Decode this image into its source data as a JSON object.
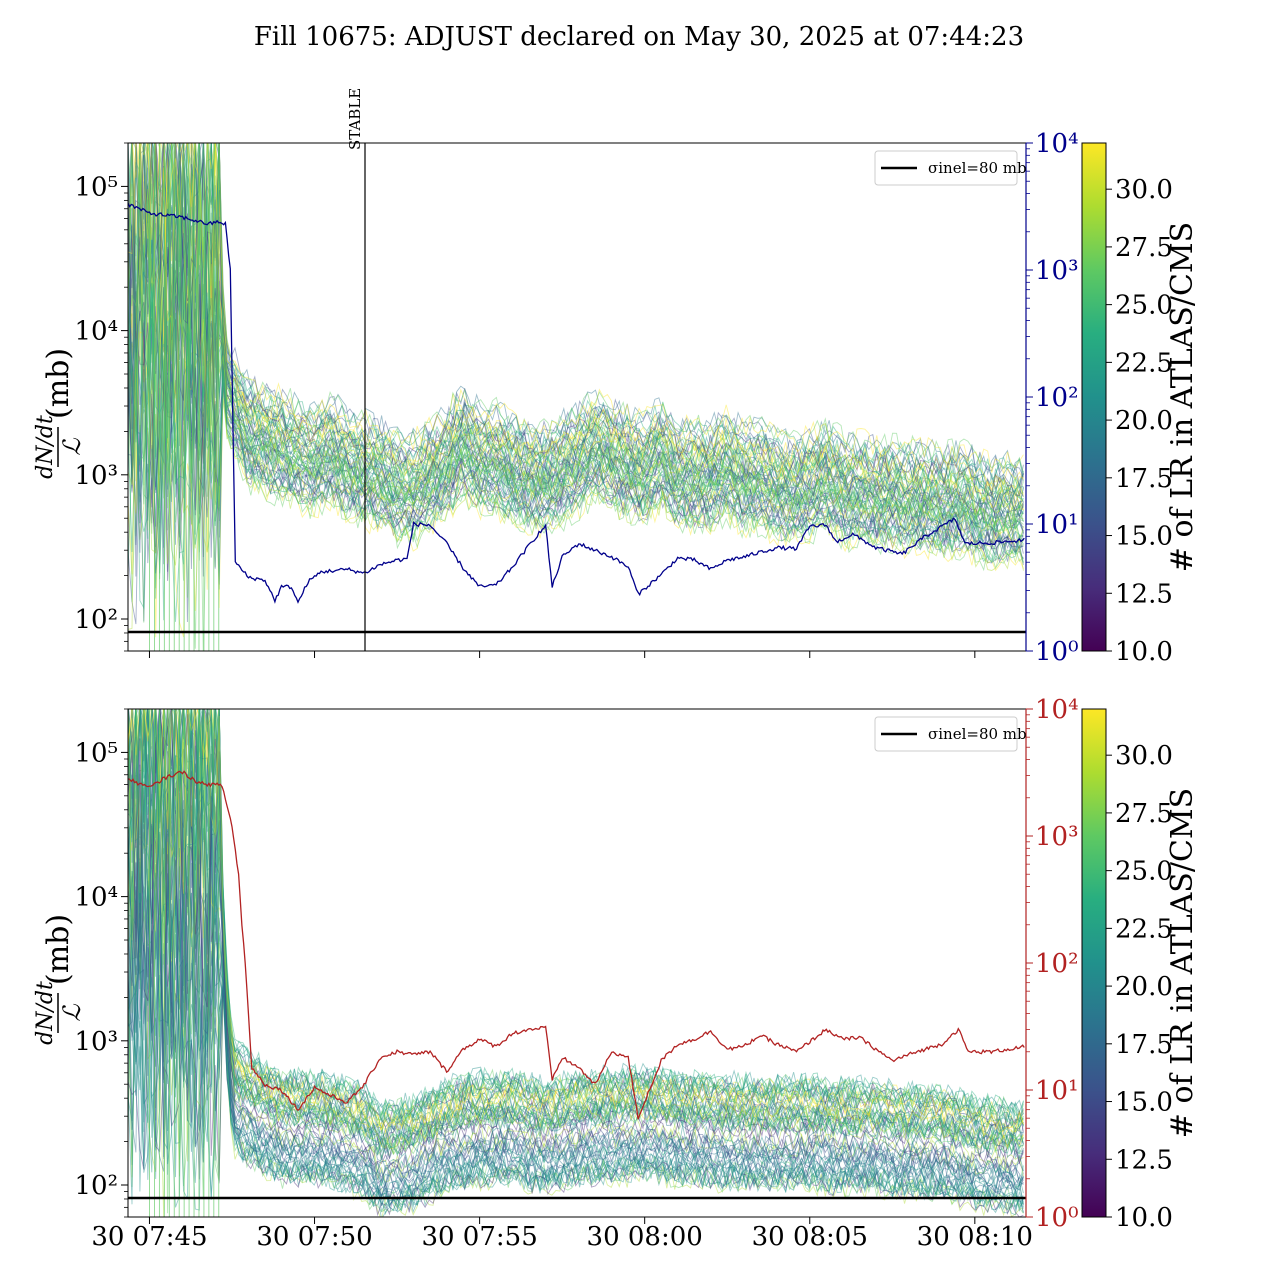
{
  "chart_data": [
    {
      "type": "line",
      "title": "Fill 10675: ADJUST declared on May 30, 2025 at 07:44:23",
      "panel": "top",
      "x_tick_labels": [
        "30 07:45",
        "30 07:50",
        "30 07:55",
        "30 08:00",
        "30 08:05",
        "30 08:10"
      ],
      "x_tick_minutes": [
        0,
        5,
        10,
        15,
        20,
        25
      ],
      "xlim_minutes": [
        -0.65,
        26.55
      ],
      "ylabel_num": "dN/dt",
      "ylabel_den": "ℒ",
      "ylabel_unit": "(mb)",
      "y_scale": "log",
      "ylim": [
        60,
        200000
      ],
      "y_tick_labels": [
        "10²",
        "10³",
        "10⁴",
        "10⁵"
      ],
      "y_tick_values": [
        100,
        1000,
        10000,
        100000
      ],
      "y2_scale": "log",
      "y2lim": [
        1,
        10000
      ],
      "y2_tick_labels": [
        "10⁰",
        "10¹",
        "10²",
        "10³",
        "10⁴"
      ],
      "y2_color": "#00008b",
      "y2_series_points": [
        [
          -0.65,
          3300
        ],
        [
          0,
          2800
        ],
        [
          1,
          2600
        ],
        [
          1.8,
          2300
        ],
        [
          2.1,
          2400
        ],
        [
          2.3,
          2300
        ],
        [
          2.45,
          1000
        ],
        [
          2.6,
          5
        ],
        [
          3,
          3.8
        ],
        [
          3.5,
          3.6
        ],
        [
          3.8,
          2.5
        ],
        [
          4,
          3.2
        ],
        [
          4.3,
          3.2
        ],
        [
          4.5,
          2.4
        ],
        [
          4.8,
          3.5
        ],
        [
          5.2,
          4.2
        ],
        [
          6,
          4.4
        ],
        [
          6.5,
          4.1
        ],
        [
          7,
          4.8
        ],
        [
          7.5,
          5.2
        ],
        [
          7.8,
          5.3
        ],
        [
          8,
          10
        ],
        [
          8.5,
          9.8
        ],
        [
          9,
          7
        ],
        [
          9.5,
          4.5
        ],
        [
          10,
          3.2
        ],
        [
          10.5,
          3.3
        ],
        [
          11,
          4.6
        ],
        [
          11.5,
          6.8
        ],
        [
          11.8,
          8.5
        ],
        [
          12,
          9.6
        ],
        [
          12.2,
          3.2
        ],
        [
          12.5,
          5.5
        ],
        [
          13,
          7
        ],
        [
          13.5,
          6.2
        ],
        [
          14,
          5.5
        ],
        [
          14.5,
          4.6
        ],
        [
          14.8,
          2.8
        ],
        [
          15.5,
          4
        ],
        [
          16,
          5.4
        ],
        [
          16.5,
          5.2
        ],
        [
          17,
          4.4
        ],
        [
          17.5,
          5.2
        ],
        [
          18,
          5.5
        ],
        [
          18.5,
          6
        ],
        [
          19,
          6.5
        ],
        [
          19.6,
          6.4
        ],
        [
          20,
          9.6
        ],
        [
          20.5,
          9.8
        ],
        [
          20.8,
          7.2
        ],
        [
          21.3,
          8.3
        ],
        [
          22,
          6.5
        ],
        [
          22.8,
          5.8
        ],
        [
          23.5,
          8
        ],
        [
          24.4,
          11
        ],
        [
          24.7,
          7
        ],
        [
          25.5,
          7.1
        ],
        [
          26.55,
          7.5
        ]
      ],
      "legend": "σinel=80 mb",
      "legend_placement": "top-right",
      "hline_value": 80,
      "vline_label": "STABLE",
      "vline_minute": 6.5,
      "colorbar_label": "# of LR in ATLAS/CMS",
      "colorbar_range": [
        10,
        32
      ],
      "colorbar_tick_labels": [
        "10.0",
        "12.5",
        "15.0",
        "17.5",
        "20.0",
        "22.5",
        "25.0",
        "27.5",
        "30.0"
      ],
      "band_median_points": [
        [
          -0.65,
          20000
        ],
        [
          0,
          20000
        ],
        [
          1.5,
          20000
        ],
        [
          2.1,
          20000
        ],
        [
          2.35,
          4000
        ],
        [
          2.6,
          3000
        ],
        [
          3,
          2000
        ],
        [
          3.5,
          1800
        ],
        [
          4,
          1600
        ],
        [
          4.5,
          1400
        ],
        [
          5,
          1300
        ],
        [
          5.5,
          1500
        ],
        [
          6,
          1200
        ],
        [
          6.5,
          1100
        ],
        [
          7,
          1000
        ],
        [
          7.5,
          850
        ],
        [
          8,
          800
        ],
        [
          8.5,
          1000
        ],
        [
          9,
          1200
        ],
        [
          9.5,
          1700
        ],
        [
          10,
          1300
        ],
        [
          10.5,
          1300
        ],
        [
          11,
          1100
        ],
        [
          11.5,
          1000
        ],
        [
          12,
          950
        ],
        [
          12.5,
          1100
        ],
        [
          13,
          1300
        ],
        [
          13.5,
          1600
        ],
        [
          14,
          1400
        ],
        [
          14.5,
          1200
        ],
        [
          15,
          1100
        ],
        [
          15.5,
          1400
        ],
        [
          16,
          1000
        ],
        [
          16.5,
          1000
        ],
        [
          17,
          1000
        ],
        [
          17.5,
          1200
        ],
        [
          18,
          950
        ],
        [
          18.5,
          1000
        ],
        [
          19,
          850
        ],
        [
          19.5,
          800
        ],
        [
          20,
          850
        ],
        [
          20.5,
          1000
        ],
        [
          21,
          800
        ],
        [
          21.5,
          800
        ],
        [
          22,
          750
        ],
        [
          22.5,
          750
        ],
        [
          23,
          700
        ],
        [
          23.5,
          700
        ],
        [
          24,
          650
        ],
        [
          24.5,
          680
        ],
        [
          24.8,
          700
        ],
        [
          25,
          600
        ],
        [
          25.5,
          560
        ],
        [
          26,
          580
        ],
        [
          26.55,
          560
        ]
      ]
    },
    {
      "type": "line",
      "panel": "bottom",
      "x_tick_labels": [
        "30 07:45",
        "30 07:50",
        "30 07:55",
        "30 08:00",
        "30 08:05",
        "30 08:10"
      ],
      "x_tick_minutes": [
        0,
        5,
        10,
        15,
        20,
        25
      ],
      "xlim_minutes": [
        -0.65,
        26.55
      ],
      "ylabel_num": "dN/dt",
      "ylabel_den": "ℒ",
      "ylabel_unit": "(mb)",
      "y_scale": "log",
      "ylim": [
        60,
        200000
      ],
      "y_tick_labels": [
        "10²",
        "10³",
        "10⁴",
        "10⁵"
      ],
      "y_tick_values": [
        100,
        1000,
        10000,
        100000
      ],
      "y2_scale": "log",
      "y2lim": [
        1,
        10000
      ],
      "y2_tick_labels": [
        "10⁰",
        "10¹",
        "10²",
        "10³",
        "10⁴"
      ],
      "y2_color": "#b22222",
      "y2_series_points": [
        [
          -0.65,
          2800
        ],
        [
          0,
          2400
        ],
        [
          0.5,
          2900
        ],
        [
          1,
          3200
        ],
        [
          1.5,
          2600
        ],
        [
          2.2,
          2500
        ],
        [
          2.5,
          1200
        ],
        [
          2.7,
          500
        ],
        [
          2.8,
          200
        ],
        [
          2.9,
          100
        ],
        [
          3.1,
          15
        ],
        [
          3.5,
          11
        ],
        [
          4,
          10
        ],
        [
          4.5,
          7
        ],
        [
          5,
          10.5
        ],
        [
          5.5,
          9
        ],
        [
          6,
          8
        ],
        [
          6.5,
          11
        ],
        [
          7,
          18
        ],
        [
          7.5,
          20
        ],
        [
          8,
          19
        ],
        [
          8.5,
          20
        ],
        [
          9,
          14
        ],
        [
          9.5,
          21
        ],
        [
          10,
          25
        ],
        [
          10.5,
          22
        ],
        [
          11,
          28
        ],
        [
          11.5,
          30
        ],
        [
          12,
          31
        ],
        [
          12.2,
          12
        ],
        [
          12.5,
          18
        ],
        [
          13,
          15
        ],
        [
          13.5,
          11
        ],
        [
          14,
          20
        ],
        [
          14.5,
          18
        ],
        [
          14.8,
          6
        ],
        [
          15.5,
          17
        ],
        [
          16,
          23
        ],
        [
          16.5,
          25
        ],
        [
          17,
          29
        ],
        [
          17.5,
          21
        ],
        [
          18,
          22
        ],
        [
          18.5,
          27
        ],
        [
          19,
          23
        ],
        [
          19.6,
          20
        ],
        [
          20,
          24
        ],
        [
          20.5,
          30
        ],
        [
          21,
          25
        ],
        [
          21.5,
          26
        ],
        [
          22,
          21
        ],
        [
          22.5,
          17
        ],
        [
          23,
          19
        ],
        [
          23.5,
          21
        ],
        [
          24,
          23
        ],
        [
          24.5,
          30
        ],
        [
          24.8,
          20
        ],
        [
          25.5,
          20
        ],
        [
          26.55,
          22
        ]
      ],
      "legend": "σinel=80 mb",
      "legend_placement": "top-right",
      "hline_value": 80,
      "colorbar_label": "# of LR in ATLAS/CMS",
      "colorbar_range": [
        10,
        32
      ],
      "colorbar_tick_labels": [
        "10.0",
        "12.5",
        "15.0",
        "17.5",
        "20.0",
        "22.5",
        "25.0",
        "27.5",
        "30.0"
      ],
      "band_median_points": [
        [
          -0.65,
          20000
        ],
        [
          0,
          20000
        ],
        [
          1.5,
          20000
        ],
        [
          2.1,
          20000
        ],
        [
          2.4,
          800
        ],
        [
          2.6,
          400
        ],
        [
          3,
          350
        ],
        [
          4,
          250
        ],
        [
          5,
          250
        ],
        [
          6,
          220
        ],
        [
          6.5,
          200
        ],
        [
          7,
          150
        ],
        [
          8,
          170
        ],
        [
          9,
          220
        ],
        [
          10,
          250
        ],
        [
          11,
          250
        ],
        [
          12,
          220
        ],
        [
          13,
          250
        ],
        [
          14,
          260
        ],
        [
          15,
          270
        ],
        [
          16,
          250
        ],
        [
          17,
          240
        ],
        [
          18,
          230
        ],
        [
          19,
          230
        ],
        [
          20,
          230
        ],
        [
          21,
          220
        ],
        [
          22,
          220
        ],
        [
          23,
          200
        ],
        [
          24,
          200
        ],
        [
          25,
          170
        ],
        [
          26,
          160
        ],
        [
          26.55,
          150
        ]
      ]
    }
  ]
}
